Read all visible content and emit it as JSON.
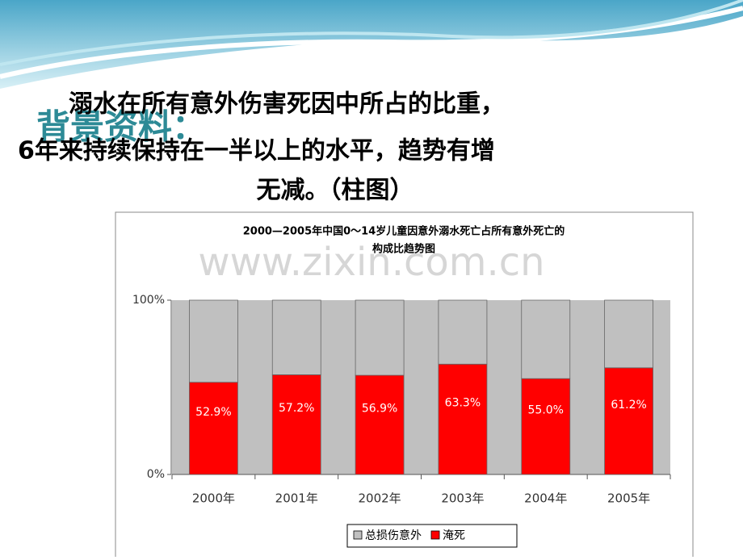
{
  "slide": {
    "heading": "背景资料：",
    "lines": [
      "溺水在所有意外伤害死因中所占的比重，",
      "6年来持续保持在一半以上的水平，趋势有增",
      "无减。（柱图）"
    ],
    "watermark": "www.zixin.com.cn"
  },
  "chart_data": {
    "type": "bar",
    "stacked": true,
    "title_lines": [
      "2000—2005年中国0～14岁儿童因意外溺水死亡占所有意外死亡的",
      "构成比趋势图"
    ],
    "categories": [
      "2000年",
      "2001年",
      "2002年",
      "2003年",
      "2004年",
      "2005年"
    ],
    "series": [
      {
        "name": "总损伤意外",
        "color": "#c0c0c0",
        "values": [
          47.1,
          42.8,
          43.1,
          36.7,
          45.0,
          38.8
        ]
      },
      {
        "name": "淹死",
        "color": "#ff0000",
        "values": [
          52.9,
          57.2,
          56.9,
          63.3,
          55.0,
          61.2
        ],
        "value_labels": [
          "52.9%",
          "57.2%",
          "56.9%",
          "63.3%",
          "55.0%",
          "61.2%"
        ]
      }
    ],
    "ylim": [
      0,
      100
    ],
    "yticks": [
      {
        "value": 0,
        "label": "0%"
      },
      {
        "value": 100,
        "label": "100%"
      }
    ],
    "legend": "bottom"
  }
}
